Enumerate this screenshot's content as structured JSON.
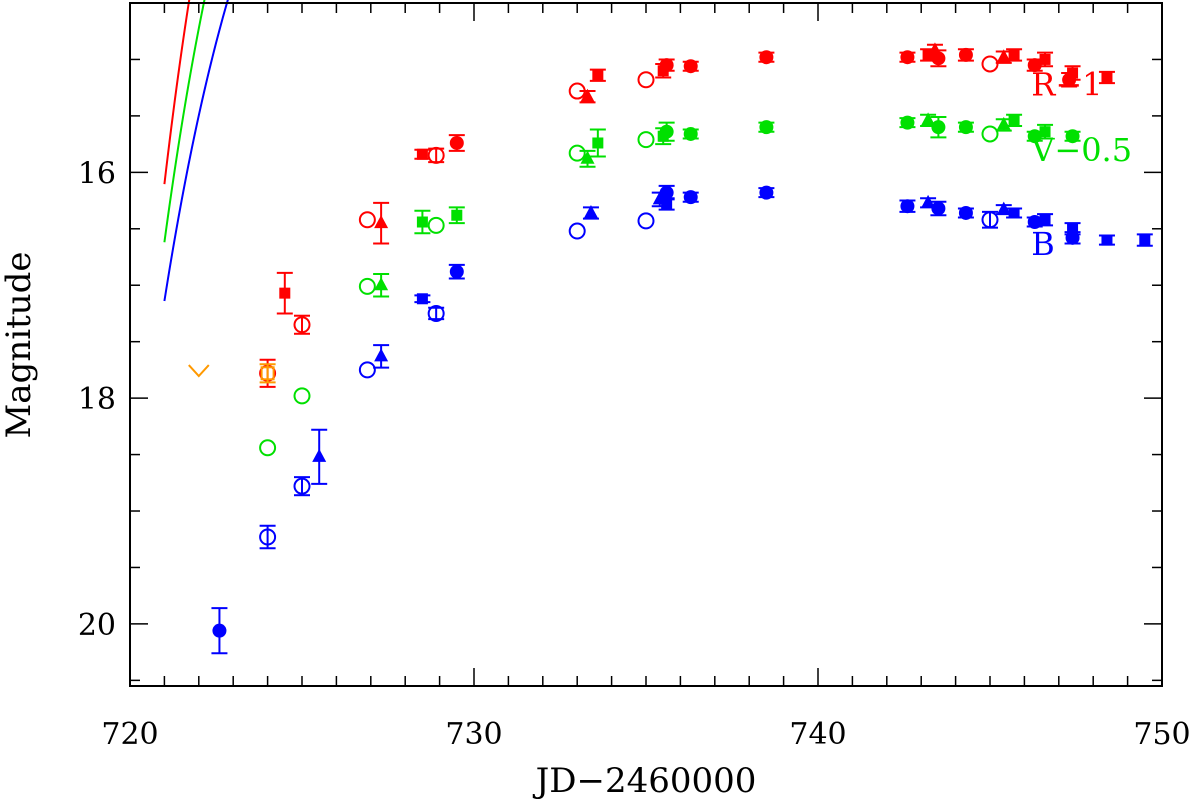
{
  "chart_data": {
    "type": "scatter",
    "title": "",
    "xlabel": "JD−2460000",
    "ylabel": "Magnitude",
    "xlim": [
      720,
      750
    ],
    "ylim": [
      20.55,
      14.5
    ],
    "y_inverted": true,
    "xticks_major": [
      720,
      730,
      740,
      750
    ],
    "xtick_labels": [
      "720",
      "730",
      "740",
      "750"
    ],
    "yticks_major": [
      16,
      18,
      20
    ],
    "ytick_labels": [
      "16",
      "18",
      "20"
    ],
    "grid": false,
    "series": [
      {
        "name": "R−1",
        "color": "#ff0000",
        "label_position": {
          "x": 746.2,
          "y": 15.32
        },
        "curve": {
          "model": "y0 + a*(exp(-(x-x0)/b) - 1) + c*(x - xp)^2",
          "y0": 14.95,
          "x0": 721.4,
          "b": 2.5,
          "a": 5.5,
          "c": 0.0005,
          "xp": 741.0
        },
        "points": [
          {
            "x": 724.0,
            "y": 17.78,
            "marker": "circle-open",
            "err": 0.12
          },
          {
            "x": 724.5,
            "y": 17.07,
            "marker": "square-filled",
            "err": 0.18
          },
          {
            "x": 725.0,
            "y": 17.35,
            "marker": "circle-open",
            "err": 0.08
          },
          {
            "x": 726.9,
            "y": 16.42,
            "marker": "circle-open",
            "err": 0.0
          },
          {
            "x": 727.3,
            "y": 16.45,
            "marker": "triangle-filled",
            "err": 0.18
          },
          {
            "x": 728.5,
            "y": 15.84,
            "marker": "square-filled",
            "err": 0.04
          },
          {
            "x": 728.9,
            "y": 15.85,
            "marker": "circle-open",
            "err": 0.06
          },
          {
            "x": 729.5,
            "y": 15.74,
            "marker": "circle-filled",
            "err": 0.07
          },
          {
            "x": 733.0,
            "y": 15.28,
            "marker": "circle-open",
            "err": 0.0
          },
          {
            "x": 733.3,
            "y": 15.33,
            "marker": "triangle-filled",
            "err": 0.05
          },
          {
            "x": 733.6,
            "y": 15.14,
            "marker": "square-filled",
            "err": 0.05
          },
          {
            "x": 735.0,
            "y": 15.18,
            "marker": "circle-open",
            "err": 0.0
          },
          {
            "x": 735.5,
            "y": 15.1,
            "marker": "square-filled",
            "err": 0.06
          },
          {
            "x": 735.6,
            "y": 15.05,
            "marker": "circle-filled",
            "err": 0.05
          },
          {
            "x": 736.3,
            "y": 15.06,
            "marker": "circle-filled",
            "err": 0.04
          },
          {
            "x": 738.5,
            "y": 14.98,
            "marker": "circle-filled",
            "err": 0.04
          },
          {
            "x": 742.6,
            "y": 14.98,
            "marker": "circle-filled",
            "err": 0.04
          },
          {
            "x": 743.2,
            "y": 14.96,
            "marker": "square-filled",
            "err": 0.05
          },
          {
            "x": 743.4,
            "y": 14.92,
            "marker": "triangle-filled",
            "err": 0.05
          },
          {
            "x": 743.5,
            "y": 14.99,
            "marker": "circle-filled",
            "err": 0.07
          },
          {
            "x": 744.3,
            "y": 14.96,
            "marker": "circle-filled",
            "err": 0.05
          },
          {
            "x": 745.0,
            "y": 15.04,
            "marker": "circle-open",
            "err": 0.0
          },
          {
            "x": 745.4,
            "y": 14.98,
            "marker": "triangle-filled",
            "err": 0.05
          },
          {
            "x": 745.7,
            "y": 14.96,
            "marker": "square-filled",
            "err": 0.05
          },
          {
            "x": 746.3,
            "y": 15.05,
            "marker": "circle-filled",
            "err": 0.05
          },
          {
            "x": 746.6,
            "y": 15.0,
            "marker": "square-filled",
            "err": 0.06
          },
          {
            "x": 747.3,
            "y": 15.18,
            "marker": "circle-filled",
            "err": 0.06
          },
          {
            "x": 747.4,
            "y": 15.12,
            "marker": "square-filled",
            "err": 0.06
          },
          {
            "x": 748.4,
            "y": 15.16,
            "marker": "square-filled",
            "err": 0.05
          }
        ]
      },
      {
        "name": "V−0.5",
        "color": "#00e000",
        "label_position": {
          "x": 746.2,
          "y": 15.9
        },
        "curve": {
          "model": "y0 + a*(exp(-(x-x0)/b) - 1) + c*(x - xp)^2",
          "y0": 15.55,
          "x0": 721.4,
          "b": 2.8,
          "a": 5.4,
          "c": 0.0006,
          "xp": 741.0
        },
        "points": [
          {
            "x": 724.0,
            "y": 18.44,
            "marker": "circle-open",
            "err": 0.0
          },
          {
            "x": 725.0,
            "y": 17.98,
            "marker": "circle-open",
            "err": 0.0
          },
          {
            "x": 726.9,
            "y": 17.01,
            "marker": "circle-open",
            "err": 0.0
          },
          {
            "x": 727.3,
            "y": 17.0,
            "marker": "triangle-filled",
            "err": 0.1
          },
          {
            "x": 728.5,
            "y": 16.44,
            "marker": "square-filled",
            "err": 0.1
          },
          {
            "x": 728.9,
            "y": 16.47,
            "marker": "circle-open",
            "err": 0.0
          },
          {
            "x": 729.5,
            "y": 16.38,
            "marker": "square-filled",
            "err": 0.07
          },
          {
            "x": 733.0,
            "y": 15.83,
            "marker": "circle-open",
            "err": 0.0
          },
          {
            "x": 733.3,
            "y": 15.88,
            "marker": "triangle-filled",
            "err": 0.07
          },
          {
            "x": 733.6,
            "y": 15.74,
            "marker": "square-filled",
            "err": 0.12
          },
          {
            "x": 735.0,
            "y": 15.71,
            "marker": "circle-open",
            "err": 0.0
          },
          {
            "x": 735.5,
            "y": 15.68,
            "marker": "square-filled",
            "err": 0.07
          },
          {
            "x": 735.6,
            "y": 15.64,
            "marker": "circle-filled",
            "err": 0.08
          },
          {
            "x": 736.3,
            "y": 15.66,
            "marker": "circle-filled",
            "err": 0.04
          },
          {
            "x": 738.5,
            "y": 15.6,
            "marker": "circle-filled",
            "err": 0.04
          },
          {
            "x": 742.6,
            "y": 15.56,
            "marker": "circle-filled",
            "err": 0.04
          },
          {
            "x": 743.2,
            "y": 15.54,
            "marker": "triangle-filled",
            "err": 0.05
          },
          {
            "x": 743.5,
            "y": 15.6,
            "marker": "circle-filled",
            "err": 0.09
          },
          {
            "x": 744.3,
            "y": 15.6,
            "marker": "circle-filled",
            "err": 0.04
          },
          {
            "x": 745.0,
            "y": 15.66,
            "marker": "circle-open",
            "err": 0.0
          },
          {
            "x": 745.4,
            "y": 15.58,
            "marker": "triangle-filled",
            "err": 0.05
          },
          {
            "x": 745.7,
            "y": 15.54,
            "marker": "square-filled",
            "err": 0.05
          },
          {
            "x": 746.3,
            "y": 15.68,
            "marker": "circle-filled",
            "err": 0.04
          },
          {
            "x": 746.6,
            "y": 15.64,
            "marker": "square-filled",
            "err": 0.06
          },
          {
            "x": 747.4,
            "y": 15.68,
            "marker": "circle-filled",
            "err": 0.04
          }
        ]
      },
      {
        "name": "B",
        "color": "#0000ff",
        "label_position": {
          "x": 746.2,
          "y": 16.73
        },
        "curve": {
          "model": "y0 + a*(exp(-(x-x0)/b) - 1) + c*(x - xp)^2",
          "y0": 16.2,
          "x0": 721.4,
          "b": 3.0,
          "a": 5.0,
          "c": 0.0007,
          "xp": 739.0
        },
        "points": [
          {
            "x": 722.6,
            "y": 20.06,
            "marker": "circle-filled",
            "err": 0.2
          },
          {
            "x": 724.0,
            "y": 19.23,
            "marker": "circle-open",
            "err": 0.1
          },
          {
            "x": 725.0,
            "y": 18.78,
            "marker": "circle-open",
            "err": 0.08
          },
          {
            "x": 725.5,
            "y": 18.52,
            "marker": "triangle-filled",
            "err": 0.24
          },
          {
            "x": 726.9,
            "y": 17.75,
            "marker": "circle-open",
            "err": 0.0
          },
          {
            "x": 727.3,
            "y": 17.63,
            "marker": "triangle-filled",
            "err": 0.1
          },
          {
            "x": 728.5,
            "y": 17.12,
            "marker": "square-filled",
            "err": 0.03
          },
          {
            "x": 728.9,
            "y": 17.25,
            "marker": "circle-open",
            "err": 0.05
          },
          {
            "x": 729.5,
            "y": 16.88,
            "marker": "circle-filled",
            "err": 0.06
          },
          {
            "x": 733.0,
            "y": 16.52,
            "marker": "circle-open",
            "err": 0.0
          },
          {
            "x": 733.4,
            "y": 16.36,
            "marker": "triangle-filled",
            "err": 0.05
          },
          {
            "x": 735.0,
            "y": 16.43,
            "marker": "circle-open",
            "err": 0.0
          },
          {
            "x": 735.4,
            "y": 16.24,
            "marker": "triangle-filled",
            "err": 0.06
          },
          {
            "x": 735.6,
            "y": 16.18,
            "marker": "circle-filled",
            "err": 0.06
          },
          {
            "x": 735.6,
            "y": 16.28,
            "marker": "square-filled",
            "err": 0.05
          },
          {
            "x": 736.3,
            "y": 16.22,
            "marker": "circle-filled",
            "err": 0.04
          },
          {
            "x": 738.5,
            "y": 16.18,
            "marker": "circle-filled",
            "err": 0.04
          },
          {
            "x": 742.6,
            "y": 16.3,
            "marker": "circle-filled",
            "err": 0.05
          },
          {
            "x": 743.2,
            "y": 16.27,
            "marker": "triangle-filled",
            "err": 0.04
          },
          {
            "x": 743.5,
            "y": 16.32,
            "marker": "circle-filled",
            "err": 0.06
          },
          {
            "x": 744.3,
            "y": 16.36,
            "marker": "circle-filled",
            "err": 0.04
          },
          {
            "x": 745.0,
            "y": 16.42,
            "marker": "circle-open",
            "err": 0.07
          },
          {
            "x": 745.4,
            "y": 16.33,
            "marker": "triangle-filled",
            "err": 0.04
          },
          {
            "x": 745.7,
            "y": 16.36,
            "marker": "square-filled",
            "err": 0.04
          },
          {
            "x": 746.3,
            "y": 16.44,
            "marker": "circle-filled",
            "err": 0.04
          },
          {
            "x": 746.6,
            "y": 16.42,
            "marker": "square-filled",
            "err": 0.05
          },
          {
            "x": 747.4,
            "y": 16.5,
            "marker": "square-filled",
            "err": 0.05
          },
          {
            "x": 747.4,
            "y": 16.58,
            "marker": "circle-filled",
            "err": 0.05
          },
          {
            "x": 748.4,
            "y": 16.6,
            "marker": "square-filled",
            "err": 0.04
          },
          {
            "x": 749.5,
            "y": 16.6,
            "marker": "square-filled",
            "err": 0.05
          }
        ]
      },
      {
        "name": "",
        "color": "#ff9900",
        "points": [
          {
            "x": 722.0,
            "y": 17.76,
            "marker": "upper-limit",
            "err": 0.0
          },
          {
            "x": 724.0,
            "y": 17.78,
            "marker": "square-open",
            "err": 0.08
          }
        ]
      }
    ]
  }
}
